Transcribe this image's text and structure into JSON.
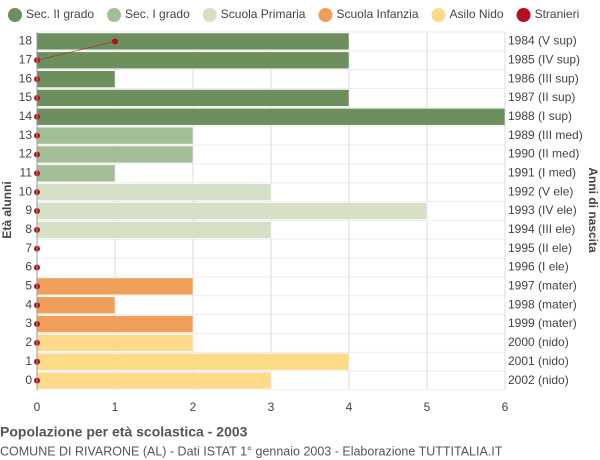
{
  "chart_data": {
    "type": "bar",
    "orientation": "horizontal",
    "title": "Popolazione per età scolastica - 2003",
    "subtitle": "COMUNE DI RIVARONE (AL) - Dati ISTAT 1° gennaio 2003 - Elaborazione TUTTITALIA.IT",
    "y_label": "Età alunni",
    "y2_label": "Anni di nascita",
    "categories": [
      "18",
      "17",
      "16",
      "15",
      "14",
      "13",
      "12",
      "11",
      "10",
      "9",
      "8",
      "7",
      "6",
      "5",
      "4",
      "3",
      "2",
      "1",
      "0"
    ],
    "y2_categories": [
      "1984 (V sup)",
      "1985 (IV sup)",
      "1986 (III sup)",
      "1987 (II sup)",
      "1988 (I sup)",
      "1989 (III med)",
      "1990 (II med)",
      "1991 (I med)",
      "1992 (V ele)",
      "1993 (IV ele)",
      "1994 (III ele)",
      "1995 (II ele)",
      "1996 (I ele)",
      "1997 (mater)",
      "1998 (mater)",
      "1999 (mater)",
      "2000 (nido)",
      "2001 (nido)",
      "2002 (nido)"
    ],
    "series": [
      {
        "name": "Sec. II grado",
        "color": "#6d8f5d",
        "values": [
          4,
          4,
          1,
          4,
          6,
          null,
          null,
          null,
          null,
          null,
          null,
          null,
          null,
          null,
          null,
          null,
          null,
          null,
          null
        ]
      },
      {
        "name": "Sec. I grado",
        "color": "#a3bd96",
        "values": [
          null,
          null,
          null,
          null,
          null,
          2,
          2,
          1,
          null,
          null,
          null,
          null,
          null,
          null,
          null,
          null,
          null,
          null,
          null
        ]
      },
      {
        "name": "Scuola Primaria",
        "color": "#d5e0c6",
        "values": [
          null,
          null,
          null,
          null,
          null,
          null,
          null,
          null,
          3,
          5,
          3,
          0,
          0,
          null,
          null,
          null,
          null,
          null,
          null
        ]
      },
      {
        "name": "Scuola Infanzia",
        "color": "#ef9f58",
        "values": [
          null,
          null,
          null,
          null,
          null,
          null,
          null,
          null,
          null,
          null,
          null,
          null,
          null,
          2,
          1,
          2,
          null,
          null,
          null
        ]
      },
      {
        "name": "Asilo Nido",
        "color": "#fdd98a",
        "values": [
          null,
          null,
          null,
          null,
          null,
          null,
          null,
          null,
          null,
          null,
          null,
          null,
          null,
          null,
          null,
          null,
          2,
          4,
          3
        ]
      },
      {
        "name": "Stranieri",
        "color": "#b3121c",
        "type": "line",
        "values": [
          1,
          0,
          0,
          0,
          0,
          0,
          0,
          0,
          0,
          0,
          0,
          0,
          0,
          0,
          0,
          0,
          0,
          0,
          0
        ]
      }
    ],
    "xlim": [
      0,
      6
    ],
    "xticks": [
      0,
      1,
      2,
      3,
      4,
      5,
      6
    ],
    "grid": true
  }
}
